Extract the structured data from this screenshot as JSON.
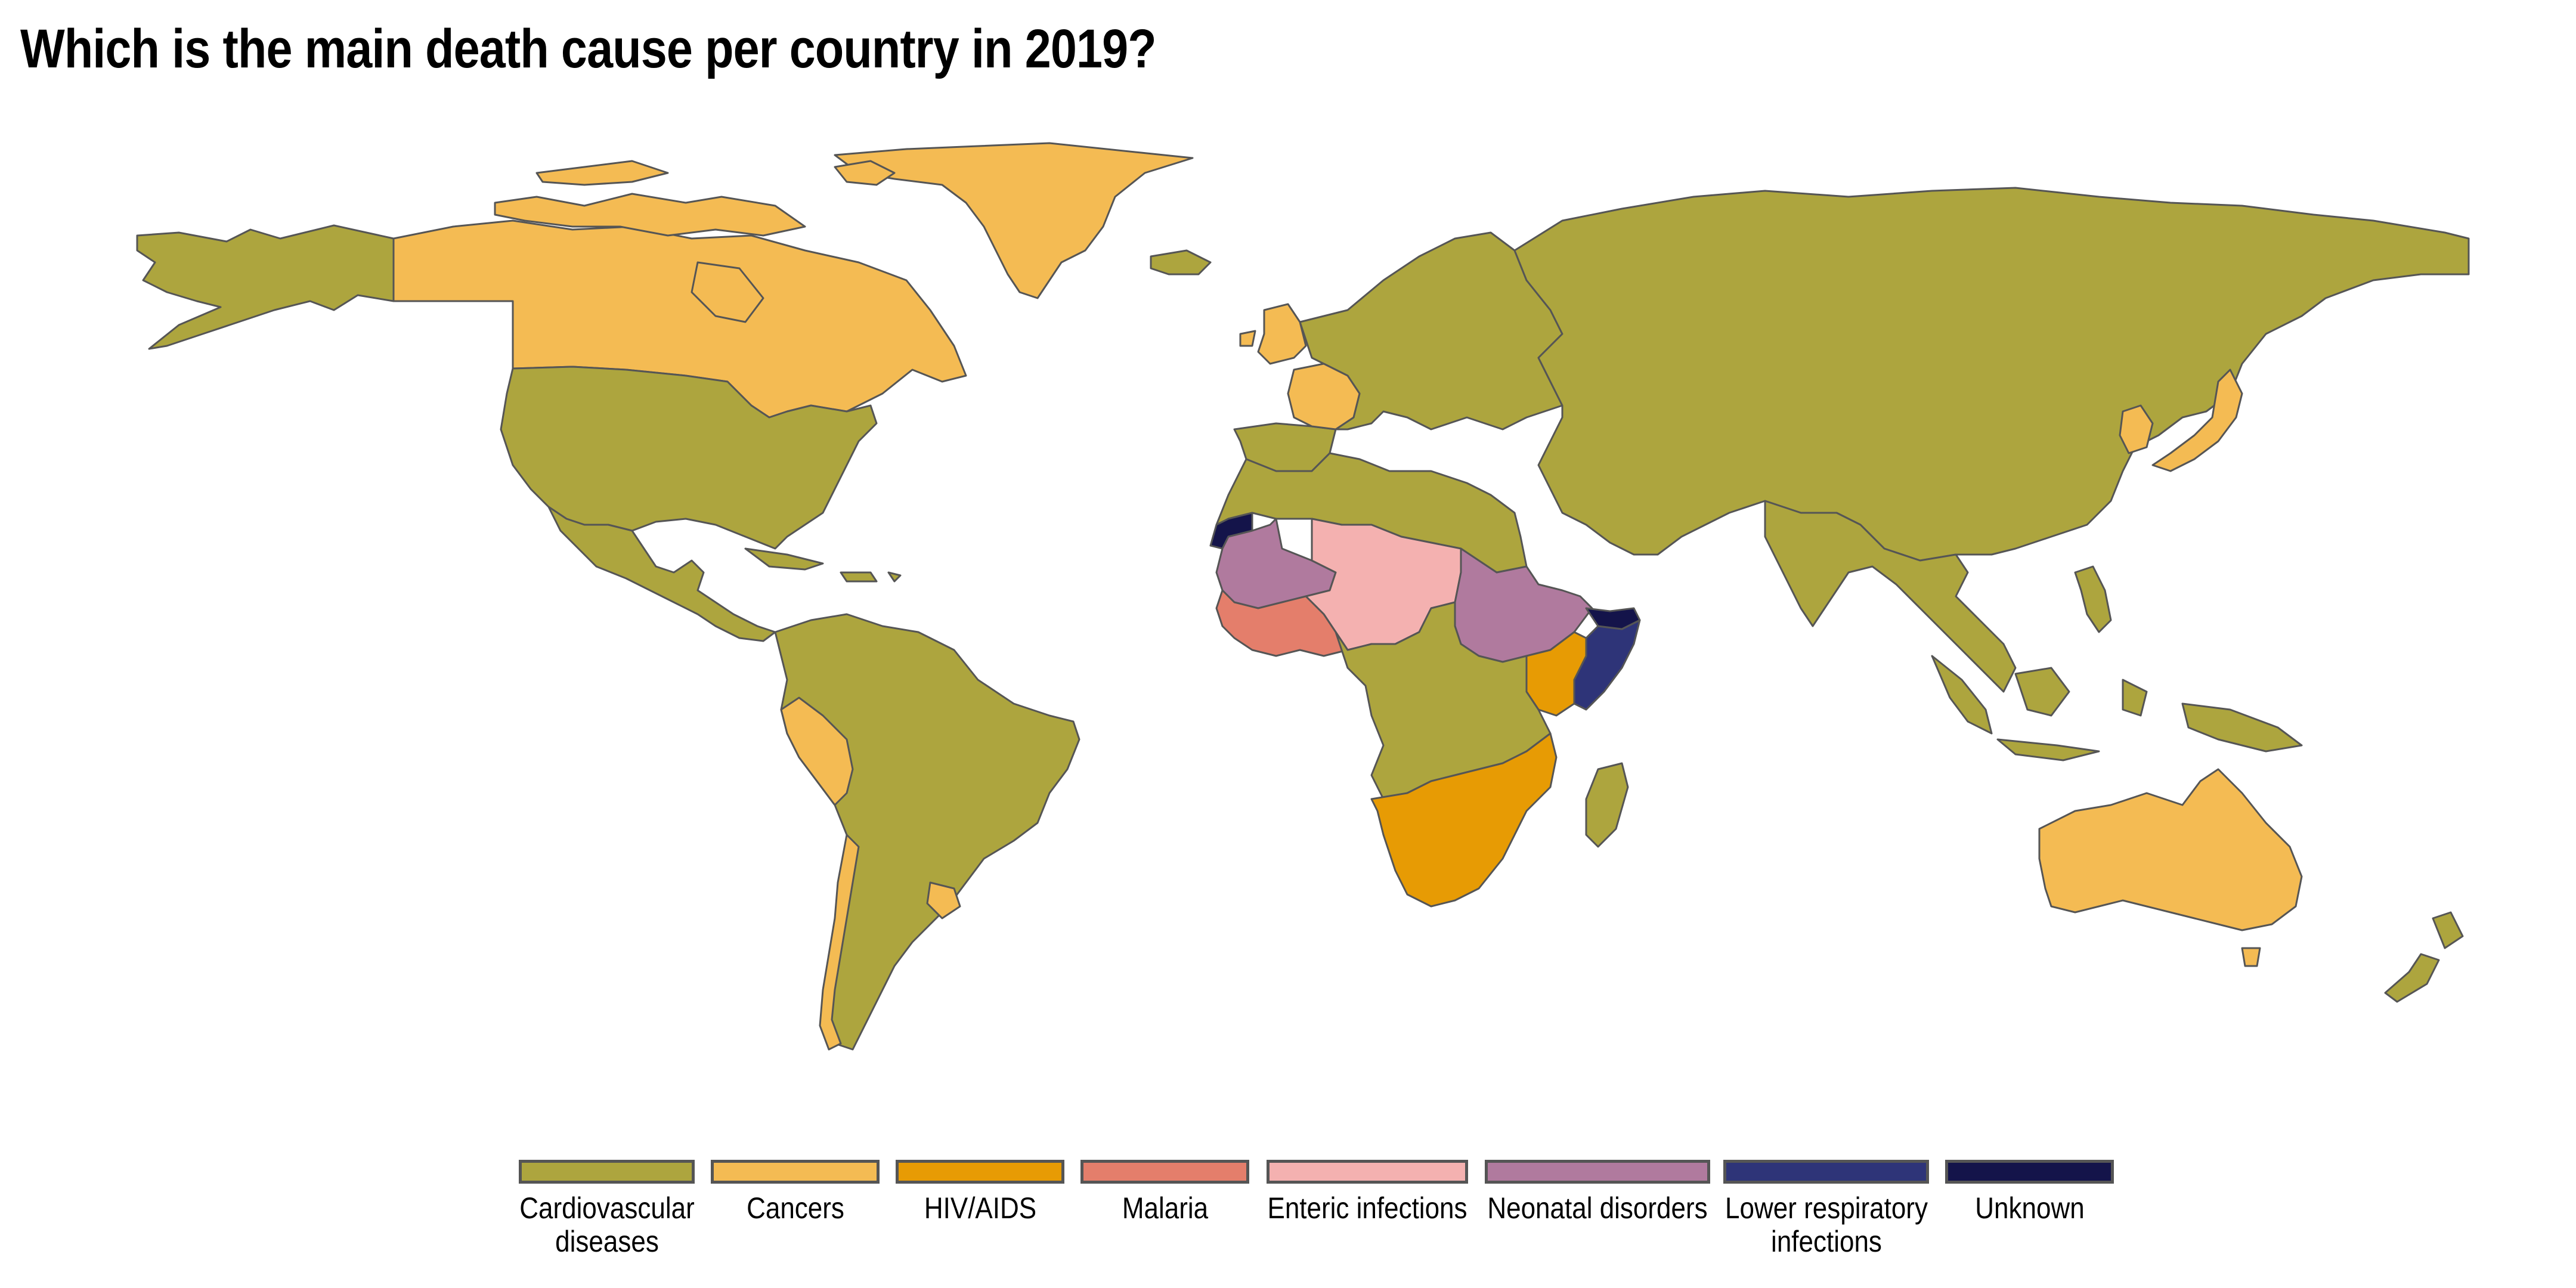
{
  "title": "Which is the main death cause per country in 2019?",
  "colors": {
    "cardiovascular": "#ADA53E",
    "cancers": "#F4BB53",
    "hiv": "#E79B04",
    "malaria": "#E47E6B",
    "enteric": "#F4B1B0",
    "neonatal": "#B07A9E",
    "lower_respiratory": "#2E3478",
    "unknown": "#14144A",
    "border": "#555555"
  },
  "legend": [
    {
      "key": "cardiovascular",
      "label": "Cardiovascular diseases",
      "line1": "Cardiovascular",
      "line2": "diseases",
      "color": "#ADA53E"
    },
    {
      "key": "cancers",
      "label": "Cancers",
      "line1": "Cancers",
      "line2": "",
      "color": "#F4BB53"
    },
    {
      "key": "hiv",
      "label": "HIV/AIDS",
      "line1": "HIV/AIDS",
      "line2": "",
      "color": "#E79B04"
    },
    {
      "key": "malaria",
      "label": "Malaria",
      "line1": "Malaria",
      "line2": "",
      "color": "#E47E6B"
    },
    {
      "key": "enteric",
      "label": "Enteric infections",
      "line1": "Enteric infections",
      "line2": "",
      "color": "#F4B1B0"
    },
    {
      "key": "neonatal",
      "label": "Neonatal disorders",
      "line1": "Neonatal disorders",
      "line2": "",
      "color": "#B07A9E"
    },
    {
      "key": "lower_respiratory",
      "label": "Lower respiratory infections",
      "line1": "Lower respiratory",
      "line2": "infections",
      "color": "#2E3478"
    },
    {
      "key": "unknown",
      "label": "Unknown",
      "line1": "Unknown",
      "line2": "",
      "color": "#14144A"
    }
  ],
  "regions": [
    {
      "name": "Alaska/USA-north",
      "category": "cardiovascular"
    },
    {
      "name": "Canada",
      "category": "cancers"
    },
    {
      "name": "Greenland",
      "category": "cancers"
    },
    {
      "name": "Arctic islands",
      "category": "cancers"
    },
    {
      "name": "United States",
      "category": "cardiovascular"
    },
    {
      "name": "Mexico/Central America",
      "category": "cardiovascular"
    },
    {
      "name": "Caribbean",
      "category": "cardiovascular"
    },
    {
      "name": "South America",
      "category": "cardiovascular"
    },
    {
      "name": "Peru",
      "category": "cancers"
    },
    {
      "name": "Chile",
      "category": "cancers"
    },
    {
      "name": "Uruguay",
      "category": "cancers"
    },
    {
      "name": "Europe",
      "category": "cardiovascular"
    },
    {
      "name": "United Kingdom",
      "category": "cancers"
    },
    {
      "name": "France",
      "category": "cancers"
    },
    {
      "name": "Iceland",
      "category": "cardiovascular"
    },
    {
      "name": "Russia/Asia",
      "category": "cardiovascular"
    },
    {
      "name": "Korea",
      "category": "cancers"
    },
    {
      "name": "Japan",
      "category": "cancers"
    },
    {
      "name": "India/SE Asia",
      "category": "cardiovascular"
    },
    {
      "name": "Indonesia",
      "category": "cardiovascular"
    },
    {
      "name": "Philippines",
      "category": "cardiovascular"
    },
    {
      "name": "Australia",
      "category": "cancers"
    },
    {
      "name": "New Zealand",
      "category": "cardiovascular"
    },
    {
      "name": "North Africa",
      "category": "cardiovascular"
    },
    {
      "name": "Western Sahara",
      "category": "unknown"
    },
    {
      "name": "Mali/Mauritania",
      "category": "neonatal"
    },
    {
      "name": "Niger/Chad/Nigeria",
      "category": "enteric"
    },
    {
      "name": "West Africa coast",
      "category": "malaria"
    },
    {
      "name": "Sudan/Ethiopia",
      "category": "neonatal"
    },
    {
      "name": "Somalia",
      "category": "lower_respiratory"
    },
    {
      "name": "Somaliland",
      "category": "unknown"
    },
    {
      "name": "Kenya",
      "category": "hiv"
    },
    {
      "name": "Central Africa",
      "category": "cardiovascular"
    },
    {
      "name": "Southern Africa",
      "category": "hiv"
    },
    {
      "name": "Madagascar",
      "category": "cardiovascular"
    }
  ]
}
